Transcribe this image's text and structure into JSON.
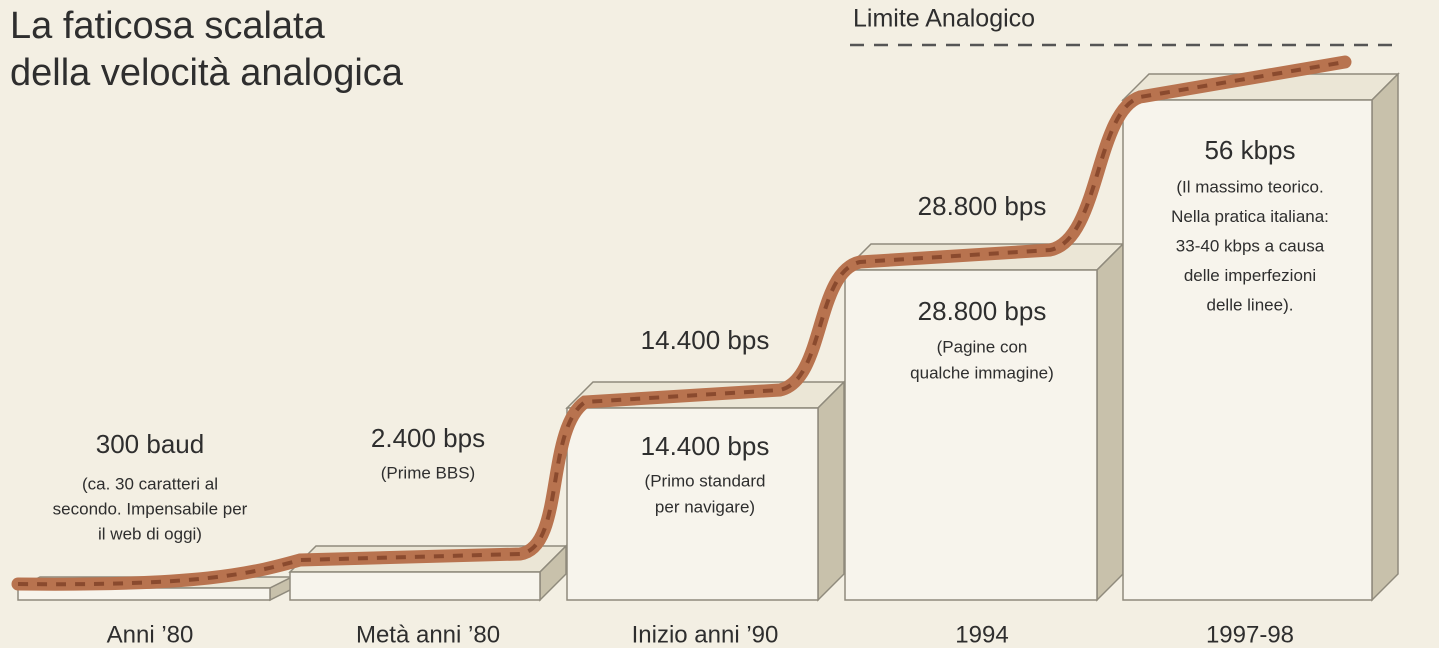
{
  "title_lines": [
    "La faticosa scalata",
    "della velocità analogica"
  ],
  "limit_label": "Limite Analogico",
  "steps": [
    {
      "speed": "300 baud",
      "description": [
        "(ca. 30 caratteri al",
        "secondo. Impensabile per",
        "il web di oggi)"
      ],
      "era": "Anni ’80"
    },
    {
      "speed": "2.400 bps",
      "description": [
        "(Prime BBS)"
      ],
      "era": "Metà anni ’80"
    },
    {
      "speed_above": "14.400 bps",
      "speed": "14.400 bps",
      "description": [
        "(Primo standard",
        "per navigare)"
      ],
      "era": "Inizio anni ’90"
    },
    {
      "speed_above": "28.800 bps",
      "speed": "28.800 bps",
      "description": [
        "(Pagine con",
        "qualche immagine)"
      ],
      "era": "1994"
    },
    {
      "speed": "56 kbps",
      "description": [
        "(Il massimo teorico.",
        "Nella pratica italiana:",
        "33-40 kbps a causa",
        "delle imperfezioni",
        "delle linee)."
      ],
      "era": "1997-98"
    }
  ]
}
